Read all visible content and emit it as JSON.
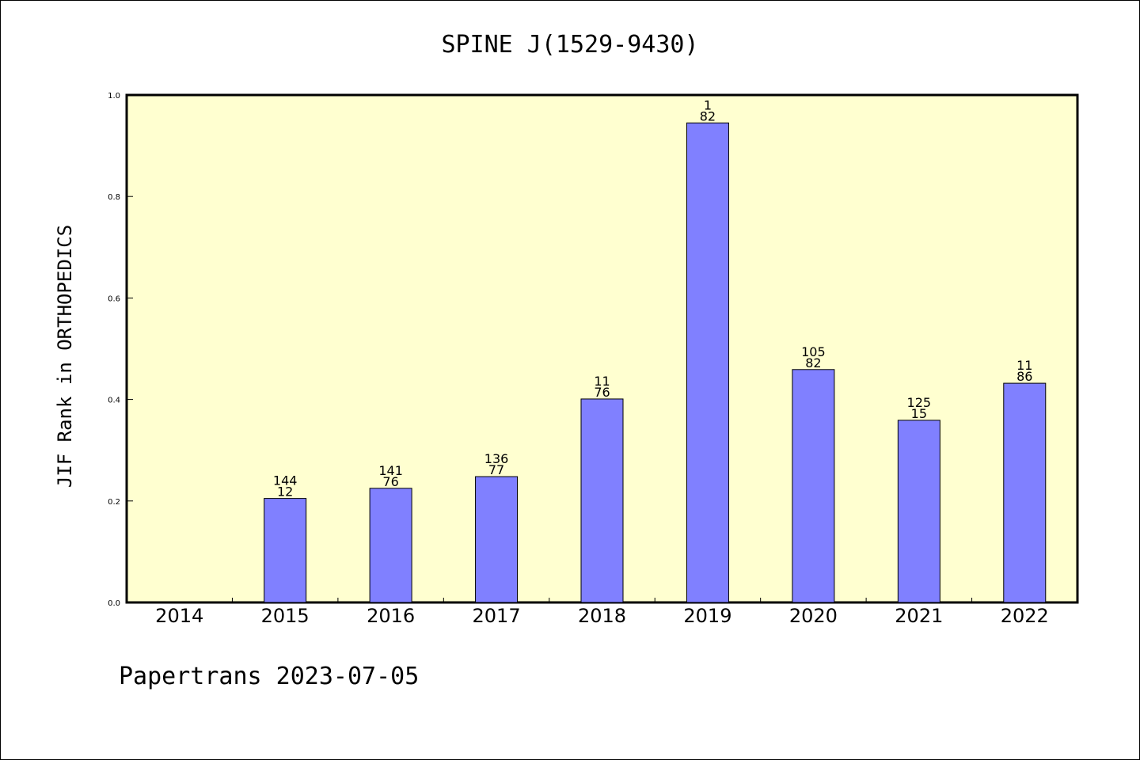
{
  "chart_data": {
    "type": "bar",
    "title": "SPINE J(1529-9430)",
    "ylabel": "JIF Rank in ORTHOPEDICS",
    "xlabel": "",
    "categories": [
      "2014",
      "2015",
      "2016",
      "2017",
      "2018",
      "2019",
      "2020",
      "2021",
      "2022"
    ],
    "values": [
      null,
      0.205,
      0.225,
      0.248,
      0.401,
      0.945,
      0.459,
      0.359,
      0.432
    ],
    "labels_top": [
      "",
      "144",
      "141",
      "136",
      "11",
      "1",
      "105",
      "125",
      "11"
    ],
    "labels_bottom": [
      "",
      "12",
      "76",
      "77",
      "76",
      "82",
      "82",
      "15",
      "86"
    ],
    "ylim": [
      0,
      1.0
    ],
    "yticks": [
      "0.0",
      "0.2",
      "0.4",
      "0.6",
      "0.8",
      "1.0"
    ],
    "grid": false,
    "colors": {
      "plot_bg": "#ffffd0",
      "bar": "#8080ff",
      "bar_edge": "#000000"
    }
  },
  "footer": "Papertrans 2023-07-05"
}
